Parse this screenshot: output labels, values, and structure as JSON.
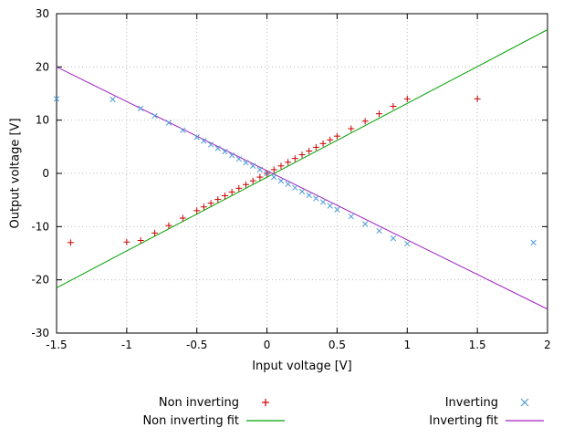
{
  "chart_data": {
    "type": "scatter",
    "title": "",
    "xlabel": "Input voltage [V]",
    "ylabel": "Output voltage [V]",
    "xlim": [
      -1.5,
      2
    ],
    "ylim": [
      -30,
      30
    ],
    "xticks": [
      -1.5,
      -1,
      -0.5,
      0,
      0.5,
      1,
      1.5,
      2
    ],
    "xtick_labels": [
      "-1.5",
      "-1",
      "-0.5",
      "0",
      "0.5",
      "1",
      "1.5",
      "2"
    ],
    "yticks": [
      -30,
      -20,
      -10,
      0,
      10,
      20,
      30
    ],
    "ytick_labels": [
      "-30",
      "-20",
      "-10",
      "0",
      "10",
      "20",
      "30"
    ],
    "grid": true,
    "grid_style": "dotted",
    "legend_position": "below",
    "background": "#ffffff",
    "series": [
      {
        "name": "Non inverting",
        "style": "points",
        "marker": "+",
        "color": "#cc0000",
        "points": [
          [
            -1.4,
            -13.0
          ],
          [
            -1.0,
            -12.9
          ],
          [
            -0.9,
            -12.6
          ],
          [
            -0.8,
            -11.2
          ],
          [
            -0.7,
            -9.8
          ],
          [
            -0.6,
            -8.4
          ],
          [
            -0.5,
            -7.0
          ],
          [
            -0.45,
            -6.3
          ],
          [
            -0.4,
            -5.6
          ],
          [
            -0.35,
            -4.9
          ],
          [
            -0.3,
            -4.2
          ],
          [
            -0.25,
            -3.5
          ],
          [
            -0.2,
            -2.8
          ],
          [
            -0.15,
            -2.1
          ],
          [
            -0.1,
            -1.4
          ],
          [
            -0.05,
            -0.7
          ],
          [
            0,
            0.0
          ],
          [
            0.05,
            0.7
          ],
          [
            0.1,
            1.4
          ],
          [
            0.15,
            2.1
          ],
          [
            0.2,
            2.8
          ],
          [
            0.25,
            3.5
          ],
          [
            0.3,
            4.2
          ],
          [
            0.35,
            4.9
          ],
          [
            0.4,
            5.6
          ],
          [
            0.45,
            6.3
          ],
          [
            0.5,
            7.0
          ],
          [
            0.6,
            8.4
          ],
          [
            0.7,
            9.8
          ],
          [
            0.8,
            11.2
          ],
          [
            0.9,
            12.6
          ],
          [
            1.0,
            14.0
          ],
          [
            1.5,
            14.0
          ]
        ]
      },
      {
        "name": "Inverting",
        "style": "points",
        "marker": "x",
        "color": "#4f9bd8",
        "points": [
          [
            -1.5,
            14.0
          ],
          [
            -1.1,
            13.9
          ],
          [
            -0.9,
            12.2
          ],
          [
            -0.8,
            10.8
          ],
          [
            -0.7,
            9.5
          ],
          [
            -0.6,
            8.1
          ],
          [
            -0.5,
            6.8
          ],
          [
            -0.45,
            6.1
          ],
          [
            -0.4,
            5.4
          ],
          [
            -0.35,
            4.7
          ],
          [
            -0.3,
            4.1
          ],
          [
            -0.25,
            3.4
          ],
          [
            -0.2,
            2.7
          ],
          [
            -0.15,
            2.0
          ],
          [
            -0.1,
            1.4
          ],
          [
            -0.05,
            0.7
          ],
          [
            0,
            0.0
          ],
          [
            0.05,
            -0.7
          ],
          [
            0.1,
            -1.4
          ],
          [
            0.15,
            -2.0
          ],
          [
            0.2,
            -2.7
          ],
          [
            0.25,
            -3.4
          ],
          [
            0.3,
            -4.1
          ],
          [
            0.35,
            -4.7
          ],
          [
            0.4,
            -5.4
          ],
          [
            0.45,
            -6.1
          ],
          [
            0.5,
            -6.8
          ],
          [
            0.6,
            -8.1
          ],
          [
            0.7,
            -9.5
          ],
          [
            0.8,
            -10.8
          ],
          [
            0.9,
            -12.2
          ],
          [
            1.0,
            -13.2
          ],
          [
            1.9,
            -13.0
          ]
        ]
      },
      {
        "name": "Non inverting fit",
        "style": "line",
        "color": "#00a000",
        "slope": 13.86,
        "intercept": -0.7,
        "points": [
          [
            -1.5,
            -21.5
          ],
          [
            2,
            27.0
          ]
        ]
      },
      {
        "name": "Inverting fit",
        "style": "line",
        "color": "#a020c0",
        "slope": -13.0,
        "intercept": 0.5,
        "points": [
          [
            -1.5,
            20.0
          ],
          [
            2,
            -25.5
          ]
        ]
      }
    ]
  }
}
